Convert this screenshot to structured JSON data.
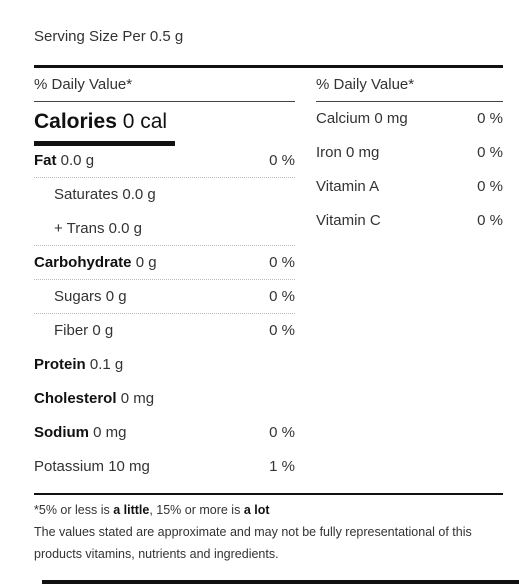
{
  "serving_size": "Serving Size Per 0.5 g",
  "left": {
    "dv_header": "% Daily Value*",
    "calories": {
      "label": "Calories",
      "value": "0 cal"
    },
    "rows": [
      {
        "label": "Fat",
        "value": "0.0 g",
        "pct": "0 %"
      },
      {
        "label": "Saturates 0.0 g"
      },
      {
        "label": "+ Trans 0.0 g"
      },
      {
        "label": "Carbohydrate",
        "value": "0 g",
        "pct": "0 %"
      },
      {
        "label": "Sugars 0 g",
        "pct": "0 %"
      },
      {
        "label": "Fiber 0 g",
        "pct": "0 %"
      },
      {
        "label": "Protein",
        "value": "0.1 g"
      },
      {
        "label": "Cholesterol",
        "value": "0 mg"
      },
      {
        "label": "Sodium",
        "value": "0 mg",
        "pct": "0 %"
      },
      {
        "label": "Potassium 10 mg",
        "pct": "1 %"
      }
    ]
  },
  "right": {
    "dv_header": "% Daily Value*",
    "rows": [
      {
        "label": "Calcium 0 mg",
        "pct": "0 %"
      },
      {
        "label": "Iron 0 mg",
        "pct": "0 %"
      },
      {
        "label": "Vitamin A",
        "pct": "0 %"
      },
      {
        "label": "Vitamin C",
        "pct": "0 %"
      }
    ]
  },
  "footnote": {
    "prefix": "*5% or less is ",
    "little": "a little",
    "middle": ", 15% or more is ",
    "lot": "a lot",
    "disclaimer": "The values stated are approximate and may not be fully representational of this products vitamins, nutrients and ingredients."
  }
}
